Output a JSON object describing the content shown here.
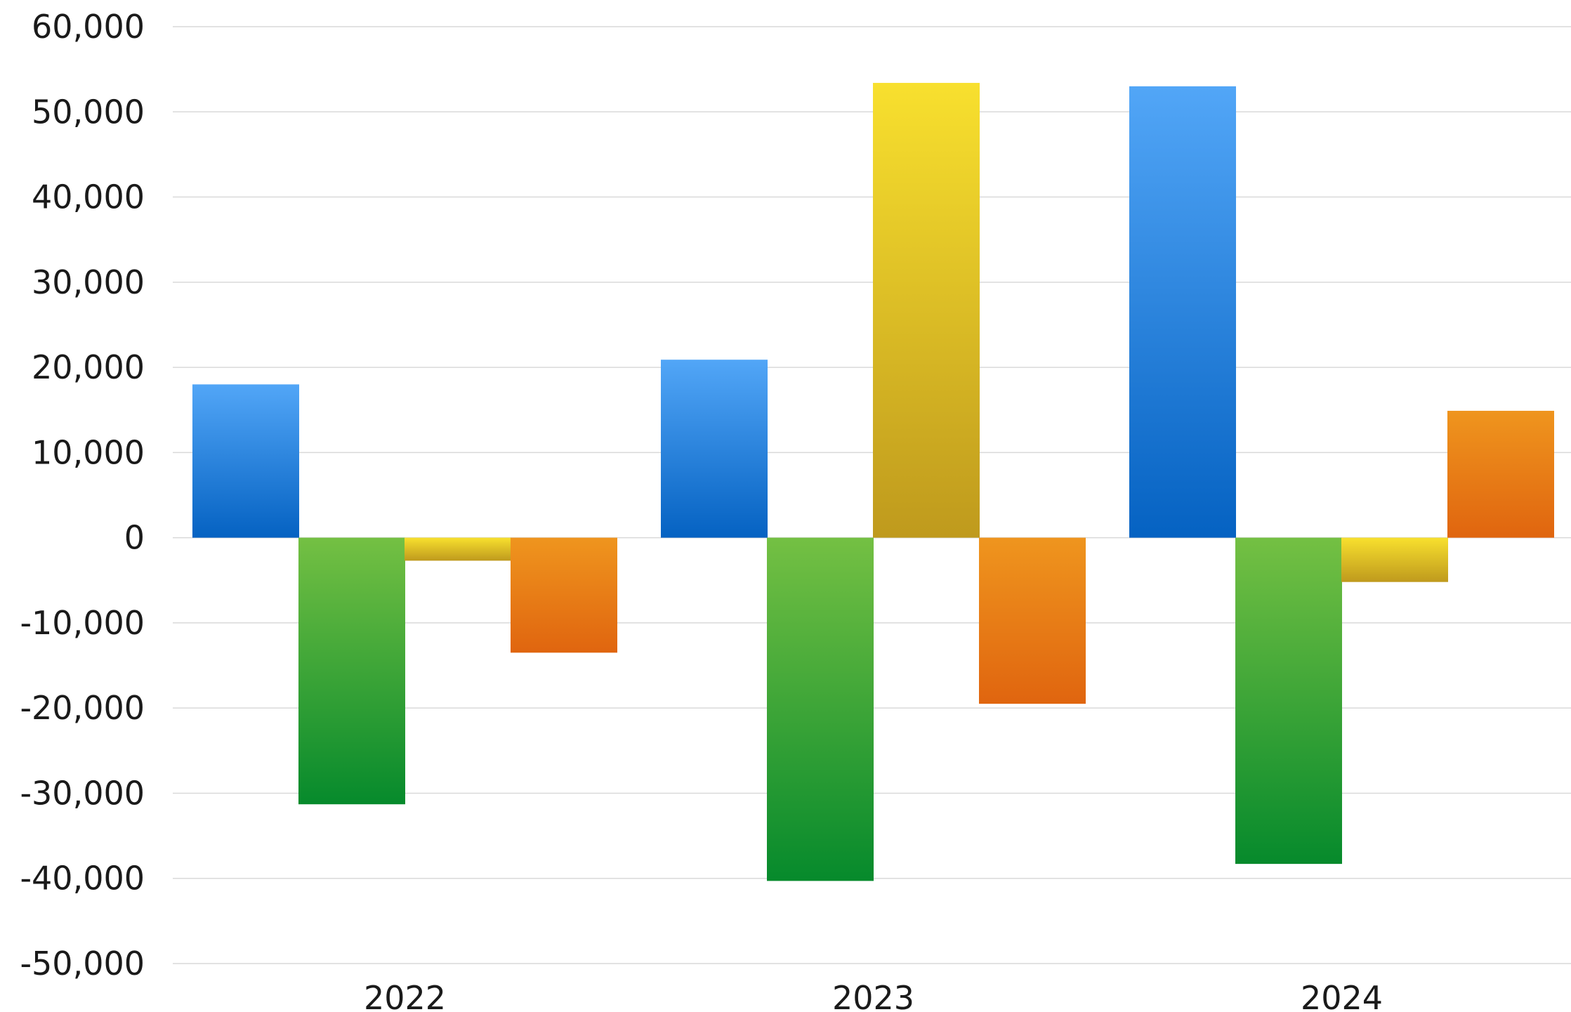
{
  "chart_data": {
    "type": "bar",
    "categories": [
      "2022",
      "2023",
      "2024"
    ],
    "series": [
      {
        "values": [
          18000,
          20900,
          53000
        ],
        "color_top": "#52a6f7",
        "color_bottom": "#0562c2"
      },
      {
        "values": [
          -31300,
          -40300,
          -38300
        ],
        "color_top": "#74c043",
        "color_bottom": "#068a2c"
      },
      {
        "values": [
          -2700,
          53400,
          -5200
        ],
        "color_top": "#f8e02e",
        "color_bottom": "#bf9a1d"
      },
      {
        "values": [
          -13500,
          -19500,
          14900
        ],
        "color_top": "#ef951e",
        "color_bottom": "#e0650f"
      }
    ],
    "ylim": [
      -50000,
      60000
    ],
    "yticks": [
      60000,
      50000,
      40000,
      30000,
      20000,
      10000,
      0,
      -10000,
      -20000,
      -30000,
      -40000,
      -50000
    ],
    "ytick_labels": [
      "60,000",
      "50,000",
      "40,000",
      "30,000",
      "20,000",
      "10,000",
      "0",
      "-10,000",
      "-20,000",
      "-30,000",
      "-40,000",
      "-50,000"
    ],
    "grid": true,
    "legend": "none",
    "title": "",
    "xlabel": "",
    "ylabel": ""
  }
}
